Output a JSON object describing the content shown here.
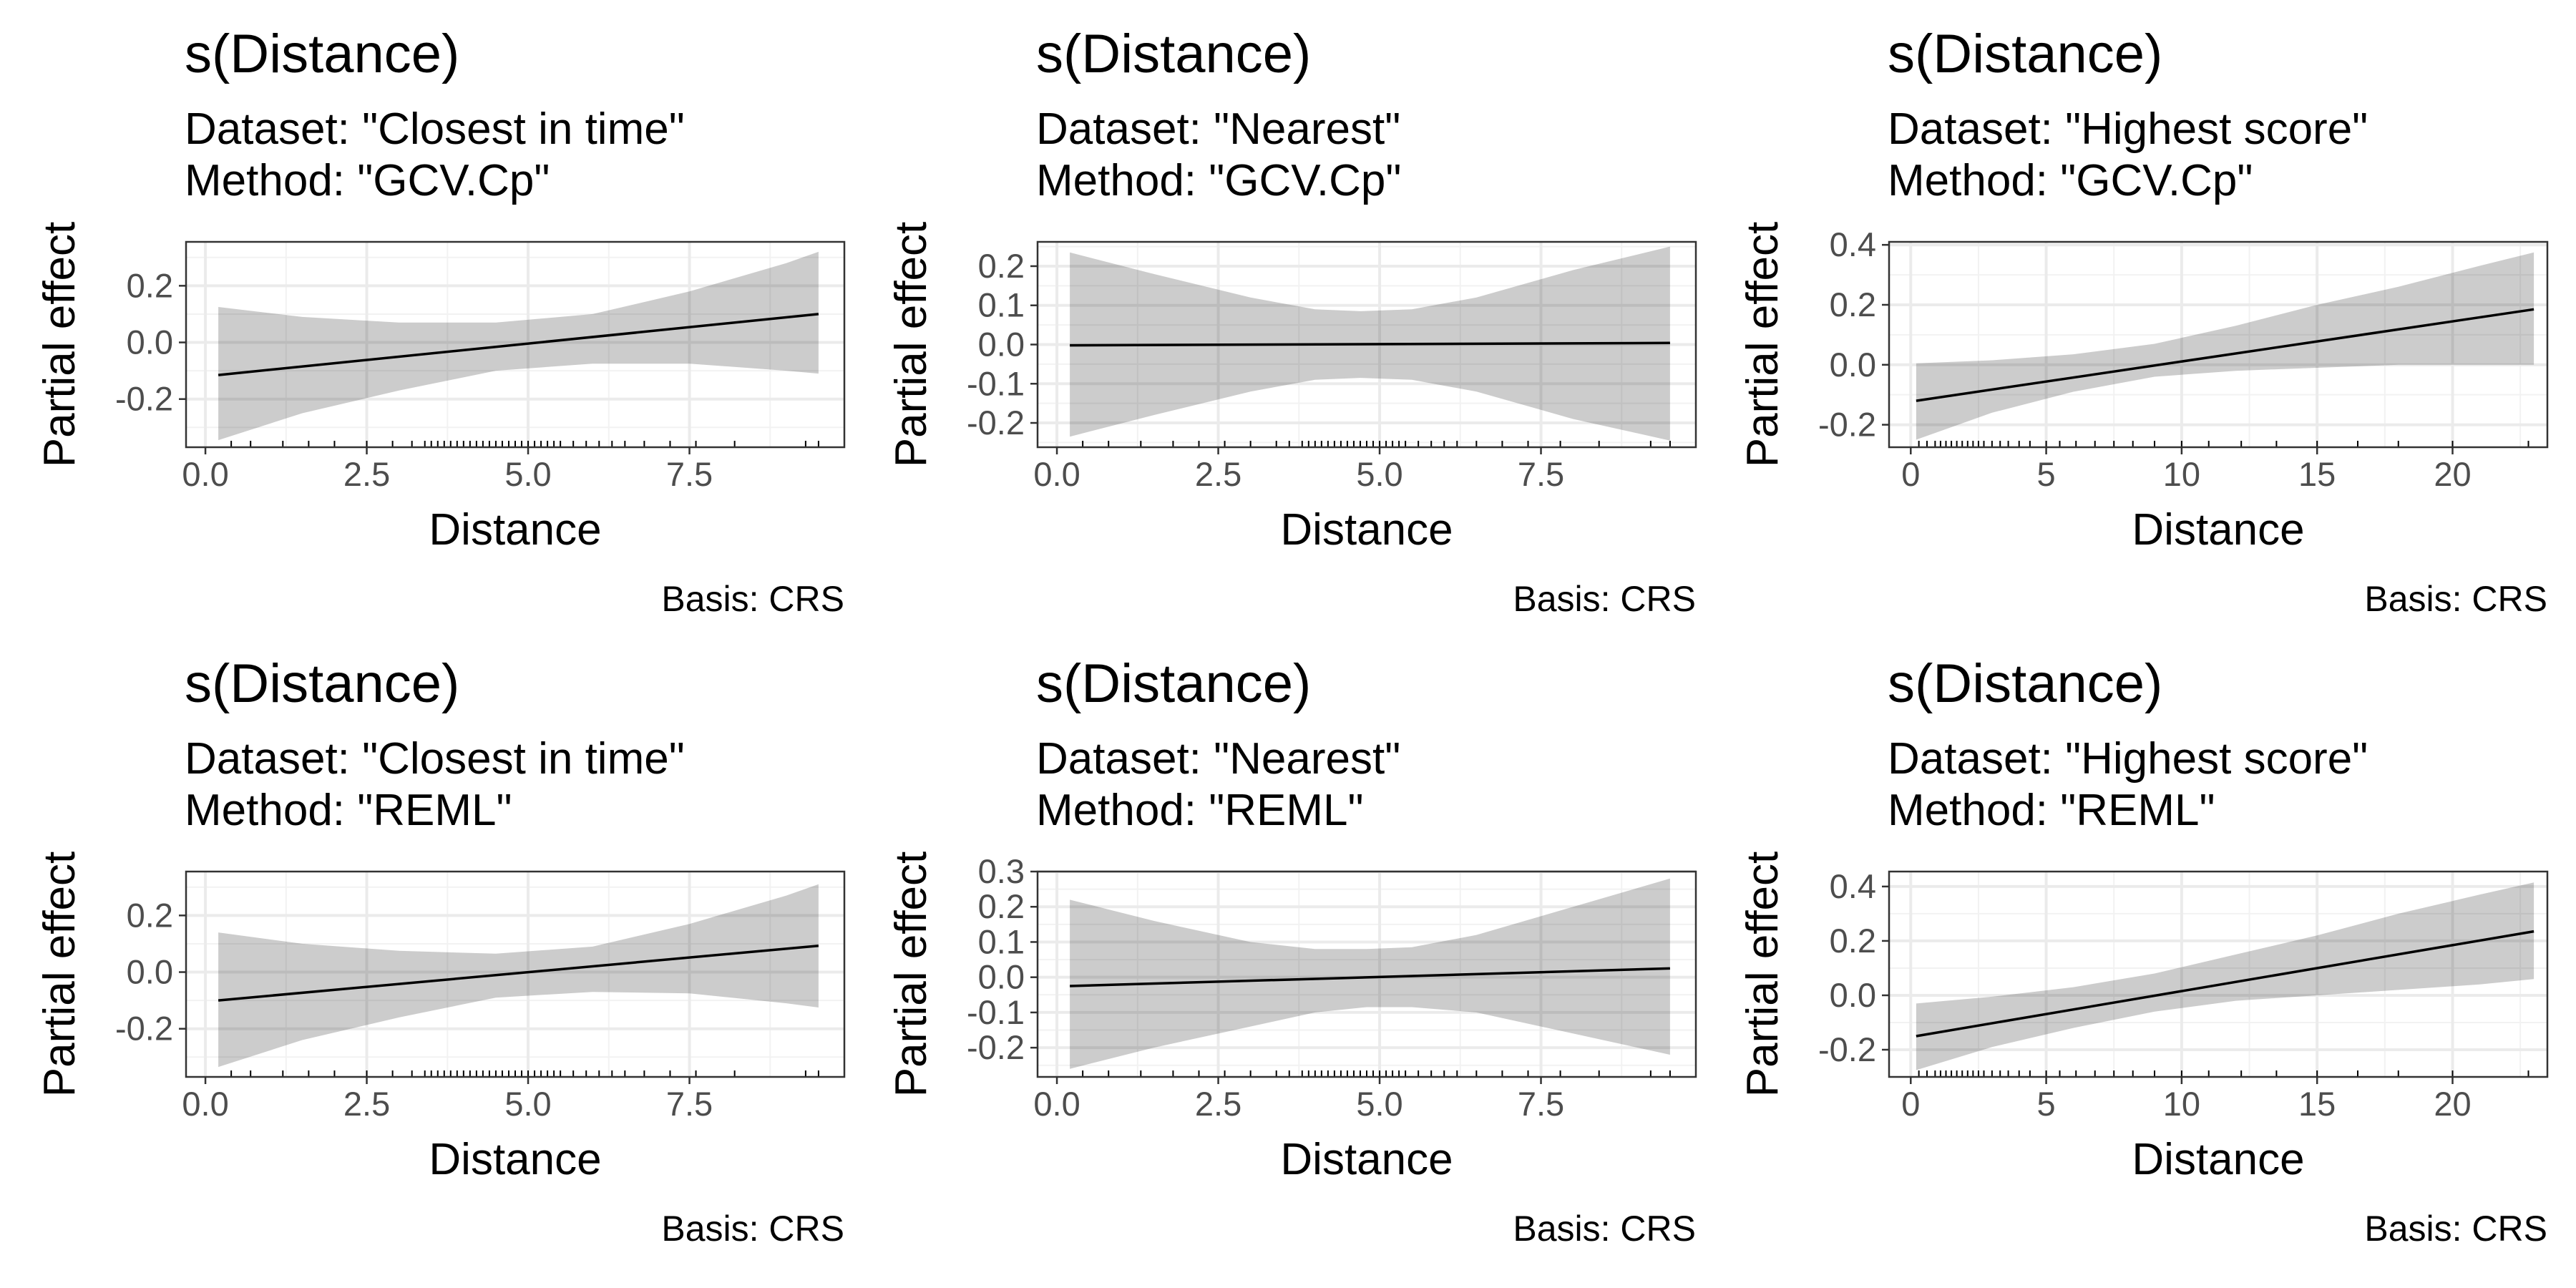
{
  "chart_data": [
    {
      "type": "line",
      "title": "s(Distance)",
      "subtitle": [
        "Dataset: \"Closest in time\"",
        "Method: \"GCV.Cp\""
      ],
      "caption": "Basis: CRS",
      "xlabel": "Distance",
      "ylabel": "Partial effect",
      "xlim": [
        -0.3,
        9.9
      ],
      "ylim": [
        -0.37,
        0.355
      ],
      "xticks": [
        0,
        2.5,
        5,
        7.5
      ],
      "xtick_labels": [
        "0.0",
        "2.5",
        "5.0",
        "7.5"
      ],
      "yticks": [
        -0.2,
        0,
        0.2
      ],
      "ytick_labels": [
        "-0.2",
        "0.0",
        "0.2"
      ],
      "grid": true,
      "series": [
        {
          "x": [
            0.2,
            9.5
          ],
          "y": [
            -0.115,
            0.1
          ]
        }
      ],
      "ci_band": {
        "x": [
          0.2,
          1.5,
          3,
          4.5,
          6,
          7.5,
          9,
          9.5
        ],
        "upper": [
          0.125,
          0.09,
          0.07,
          0.07,
          0.1,
          0.18,
          0.28,
          0.32
        ],
        "lower": [
          -0.345,
          -0.25,
          -0.17,
          -0.1,
          -0.075,
          -0.075,
          -0.1,
          -0.11
        ]
      },
      "rug": [
        0.4,
        0.7,
        1.2,
        1.6,
        2.0,
        2.5,
        2.9,
        3.2,
        3.4,
        3.5,
        3.6,
        3.7,
        3.8,
        3.9,
        4.0,
        4.1,
        4.2,
        4.3,
        4.4,
        4.5,
        4.6,
        4.7,
        4.8,
        4.9,
        5.0,
        5.1,
        5.2,
        5.3,
        5.4,
        5.5,
        5.7,
        5.9,
        6.1,
        6.3,
        6.5,
        6.8,
        7.2,
        7.6,
        8.2,
        9.3,
        9.5
      ]
    },
    {
      "type": "line",
      "title": "s(Distance)",
      "subtitle": [
        "Dataset: \"Nearest\"",
        "Method: \"GCV.Cp\""
      ],
      "caption": "Basis: CRS",
      "xlabel": "Distance",
      "ylabel": "Partial effect",
      "xlim": [
        -0.3,
        9.9
      ],
      "ylim": [
        -0.262,
        0.262
      ],
      "xticks": [
        0,
        2.5,
        5,
        7.5
      ],
      "xtick_labels": [
        "0.0",
        "2.5",
        "5.0",
        "7.5"
      ],
      "yticks": [
        -0.2,
        -0.1,
        0,
        0.1,
        0.2
      ],
      "ytick_labels": [
        "-0.2",
        "-0.1",
        "0.0",
        "0.1",
        "0.2"
      ],
      "grid": true,
      "series": [
        {
          "x": [
            0.2,
            9.5
          ],
          "y": [
            -0.002,
            0.004
          ]
        }
      ],
      "ci_band": {
        "x": [
          0.2,
          1.5,
          3,
          4,
          4.7,
          5.5,
          6.5,
          8,
          9.5
        ],
        "upper": [
          0.235,
          0.18,
          0.12,
          0.09,
          0.085,
          0.09,
          0.12,
          0.19,
          0.25
        ],
        "lower": [
          -0.235,
          -0.18,
          -0.12,
          -0.09,
          -0.085,
          -0.09,
          -0.12,
          -0.19,
          -0.245
        ]
      },
      "rug": [
        0.4,
        0.8,
        1.3,
        1.8,
        2.2,
        2.6,
        3.0,
        3.4,
        3.6,
        3.8,
        3.9,
        4.0,
        4.1,
        4.2,
        4.3,
        4.4,
        4.5,
        4.6,
        4.7,
        4.8,
        4.9,
        5.0,
        5.1,
        5.2,
        5.3,
        5.4,
        5.6,
        5.8,
        6.0,
        6.2,
        6.5,
        6.9,
        7.3,
        7.8,
        8.4,
        9.2,
        9.5
      ]
    },
    {
      "type": "line",
      "title": "s(Distance)",
      "subtitle": [
        "Dataset: \"Highest score\"",
        "Method: \"GCV.Cp\""
      ],
      "caption": "Basis: CRS",
      "xlabel": "Distance",
      "ylabel": "Partial effect",
      "xlim": [
        -0.8,
        23.5
      ],
      "ylim": [
        -0.275,
        0.41
      ],
      "xticks": [
        0,
        5,
        10,
        15,
        20
      ],
      "xtick_labels": [
        "0",
        "5",
        "10",
        "15",
        "20"
      ],
      "yticks": [
        -0.2,
        0,
        0.2,
        0.4
      ],
      "ytick_labels": [
        "-0.2",
        "0.0",
        "0.2",
        "0.4"
      ],
      "grid": true,
      "series": [
        {
          "x": [
            0.2,
            23
          ],
          "y": [
            -0.12,
            0.185
          ]
        }
      ],
      "ci_band": {
        "x": [
          0.2,
          3,
          6,
          9,
          12,
          15,
          18,
          21,
          23
        ],
        "upper": [
          0.005,
          0.015,
          0.035,
          0.07,
          0.13,
          0.2,
          0.26,
          0.33,
          0.375
        ],
        "lower": [
          -0.25,
          -0.16,
          -0.09,
          -0.04,
          -0.02,
          -0.01,
          0.0,
          0.0,
          0.0
        ]
      },
      "rug": [
        0.3,
        0.6,
        0.9,
        1.1,
        1.3,
        1.5,
        1.7,
        1.9,
        2.1,
        2.3,
        2.5,
        2.7,
        3.0,
        3.3,
        3.6,
        4.0,
        4.4,
        5.0,
        5.5,
        6.1,
        6.8,
        7.5,
        8.2,
        9.0,
        10.0,
        11.0,
        12.2,
        13.5,
        15.0,
        16.5,
        18.0,
        20.0,
        22.8
      ]
    },
    {
      "type": "line",
      "title": "s(Distance)",
      "subtitle": [
        "Dataset: \"Closest in time\"",
        "Method: \"REML\""
      ],
      "caption": "Basis: CRS",
      "xlabel": "Distance",
      "ylabel": "Partial effect",
      "xlim": [
        -0.3,
        9.9
      ],
      "ylim": [
        -0.37,
        0.355
      ],
      "xticks": [
        0,
        2.5,
        5,
        7.5
      ],
      "xtick_labels": [
        "0.0",
        "2.5",
        "5.0",
        "7.5"
      ],
      "yticks": [
        -0.2,
        0,
        0.2
      ],
      "ytick_labels": [
        "-0.2",
        "0.0",
        "0.2"
      ],
      "grid": true,
      "series": [
        {
          "x": [
            0.2,
            9.5
          ],
          "y": [
            -0.1,
            0.093
          ]
        }
      ],
      "ci_band": {
        "x": [
          0.2,
          1.5,
          3,
          4.5,
          6,
          7.5,
          9,
          9.5
        ],
        "upper": [
          0.14,
          0.1,
          0.075,
          0.065,
          0.09,
          0.17,
          0.27,
          0.31
        ],
        "lower": [
          -0.335,
          -0.24,
          -0.16,
          -0.09,
          -0.07,
          -0.075,
          -0.11,
          -0.125
        ]
      },
      "rug": [
        0.4,
        0.7,
        1.2,
        1.6,
        2.0,
        2.5,
        2.9,
        3.2,
        3.4,
        3.5,
        3.6,
        3.7,
        3.8,
        3.9,
        4.0,
        4.1,
        4.2,
        4.3,
        4.4,
        4.5,
        4.6,
        4.7,
        4.8,
        4.9,
        5.0,
        5.1,
        5.2,
        5.3,
        5.4,
        5.5,
        5.7,
        5.9,
        6.1,
        6.3,
        6.5,
        6.8,
        7.2,
        7.6,
        8.2,
        9.3,
        9.5
      ]
    },
    {
      "type": "line",
      "title": "s(Distance)",
      "subtitle": [
        "Dataset: \"Nearest\"",
        "Method: \"REML\""
      ],
      "caption": "Basis: CRS",
      "xlabel": "Distance",
      "ylabel": "Partial effect",
      "xlim": [
        -0.3,
        9.9
      ],
      "ylim": [
        -0.283,
        0.3
      ],
      "xticks": [
        0,
        2.5,
        5,
        7.5
      ],
      "xtick_labels": [
        "0.0",
        "2.5",
        "5.0",
        "7.5"
      ],
      "yticks": [
        -0.2,
        -0.1,
        0,
        0.1,
        0.2,
        0.3
      ],
      "ytick_labels": [
        "-0.2",
        "-0.1",
        "0.0",
        "0.1",
        "0.2",
        "0.3"
      ],
      "grid": true,
      "series": [
        {
          "x": [
            0.2,
            9.5
          ],
          "y": [
            -0.025,
            0.025
          ]
        }
      ],
      "ci_band": {
        "x": [
          0.2,
          1.5,
          3,
          4,
          4.8,
          5.5,
          6.5,
          8,
          9.5
        ],
        "upper": [
          0.22,
          0.16,
          0.1,
          0.08,
          0.08,
          0.085,
          0.12,
          0.2,
          0.28
        ],
        "lower": [
          -0.26,
          -0.2,
          -0.14,
          -0.1,
          -0.085,
          -0.085,
          -0.1,
          -0.16,
          -0.22
        ]
      },
      "rug": [
        0.4,
        0.8,
        1.3,
        1.8,
        2.2,
        2.6,
        3.0,
        3.4,
        3.6,
        3.8,
        3.9,
        4.0,
        4.1,
        4.2,
        4.3,
        4.4,
        4.5,
        4.6,
        4.7,
        4.8,
        4.9,
        5.0,
        5.1,
        5.2,
        5.3,
        5.4,
        5.6,
        5.8,
        6.0,
        6.2,
        6.5,
        6.9,
        7.3,
        7.8,
        8.4,
        9.2,
        9.5
      ]
    },
    {
      "type": "line",
      "title": "s(Distance)",
      "subtitle": [
        "Dataset: \"Highest score\"",
        "Method: \"REML\""
      ],
      "caption": "Basis: CRS",
      "xlabel": "Distance",
      "ylabel": "Partial effect",
      "xlim": [
        -0.8,
        23.5
      ],
      "ylim": [
        -0.3,
        0.455
      ],
      "xticks": [
        0,
        5,
        10,
        15,
        20
      ],
      "xtick_labels": [
        "0",
        "5",
        "10",
        "15",
        "20"
      ],
      "yticks": [
        -0.2,
        0,
        0.2,
        0.4
      ],
      "ytick_labels": [
        "-0.2",
        "0.0",
        "0.2",
        "0.4"
      ],
      "grid": true,
      "series": [
        {
          "x": [
            0.2,
            23
          ],
          "y": [
            -0.15,
            0.235
          ]
        }
      ],
      "ci_band": {
        "x": [
          0.2,
          3,
          6,
          9,
          12,
          15,
          18,
          21,
          23
        ],
        "upper": [
          -0.03,
          -0.005,
          0.03,
          0.08,
          0.15,
          0.22,
          0.3,
          0.37,
          0.415
        ],
        "lower": [
          -0.275,
          -0.19,
          -0.12,
          -0.06,
          -0.02,
          0.0,
          0.02,
          0.04,
          0.06
        ]
      },
      "rug": [
        0.3,
        0.6,
        0.9,
        1.1,
        1.3,
        1.5,
        1.7,
        1.9,
        2.1,
        2.3,
        2.5,
        2.7,
        3.0,
        3.3,
        3.6,
        4.0,
        4.4,
        5.0,
        5.5,
        6.1,
        6.8,
        7.5,
        8.2,
        9.0,
        10.0,
        11.0,
        12.2,
        13.5,
        15.0,
        16.5,
        18.0,
        20.0,
        22.8
      ]
    }
  ]
}
